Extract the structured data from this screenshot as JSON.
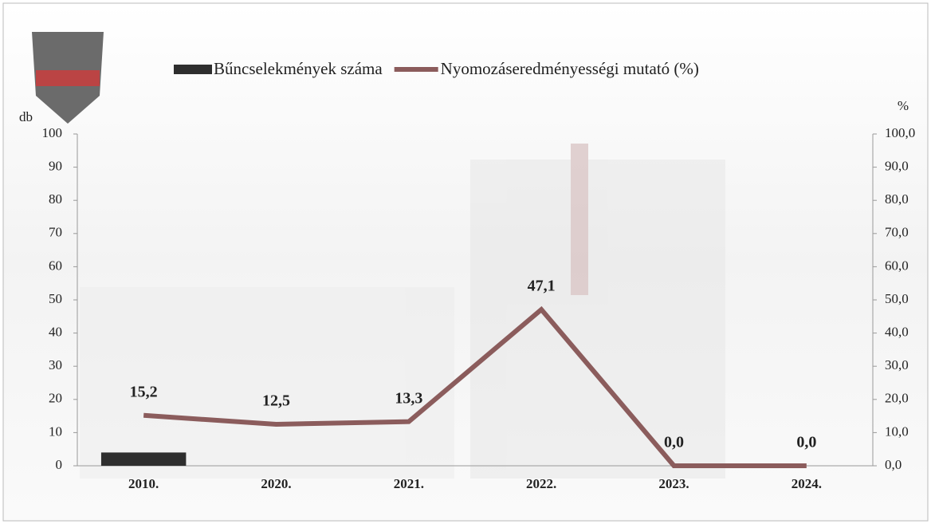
{
  "chart_data": {
    "type": "bar-line",
    "categories": [
      "2010.",
      "2020.",
      "2021.",
      "2022.",
      "2023.",
      "2024."
    ],
    "series": [
      {
        "name": "Bűncselekmények száma",
        "type": "bar",
        "color": "#2e2e2e",
        "values": [
          4,
          0,
          0,
          0,
          0,
          0
        ]
      },
      {
        "name": "Nyomozáseredményességi mutató (%)",
        "type": "line",
        "axis": "y2",
        "color": "#8b5c5c",
        "values": [
          15.2,
          12.5,
          13.3,
          47.1,
          0.0,
          0.0
        ],
        "value_labels": [
          "15,2",
          "12,5",
          "13,3",
          "47,1",
          "0,0",
          "0,0"
        ]
      }
    ],
    "ylabel": "db",
    "y2label": "%",
    "ylim": [
      0,
      100
    ],
    "yticks": [
      0,
      10,
      20,
      30,
      40,
      50,
      60,
      70,
      80,
      90,
      100
    ],
    "y2lim": [
      0,
      100
    ],
    "y2ticks": [
      {
        "value": 0,
        "label": "0,0"
      },
      {
        "value": 10,
        "label": "10,0"
      },
      {
        "value": 20,
        "label": "20,0"
      },
      {
        "value": 30,
        "label": "30,0"
      },
      {
        "value": 40,
        "label": "40,0"
      },
      {
        "value": 50,
        "label": "50,0"
      },
      {
        "value": 60,
        "label": "60,0"
      },
      {
        "value": 70,
        "label": "70,0"
      },
      {
        "value": 80,
        "label": "80,0"
      },
      {
        "value": 90,
        "label": "90,0"
      },
      {
        "value": 100,
        "label": "100,0"
      }
    ]
  }
}
